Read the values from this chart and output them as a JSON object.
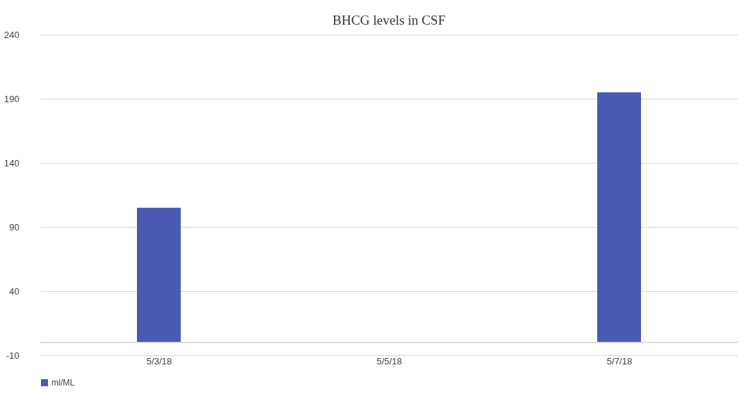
{
  "chart_data": {
    "type": "bar",
    "title": "BHCG levels in CSF",
    "categories": [
      "5/3/18",
      "5/5/18",
      "5/7/18"
    ],
    "series": [
      {
        "name": "ml/ML",
        "color": "#4a5ab2",
        "values": [
          105,
          null,
          195
        ]
      }
    ],
    "ylim": [
      -10,
      240
    ],
    "yticks": [
      -10,
      40,
      90,
      140,
      190,
      240
    ],
    "ref_lines": [
      {
        "axis": "y",
        "value": 0,
        "color": "#d0d0d0"
      }
    ],
    "grid": "y",
    "legend": "bottom"
  }
}
